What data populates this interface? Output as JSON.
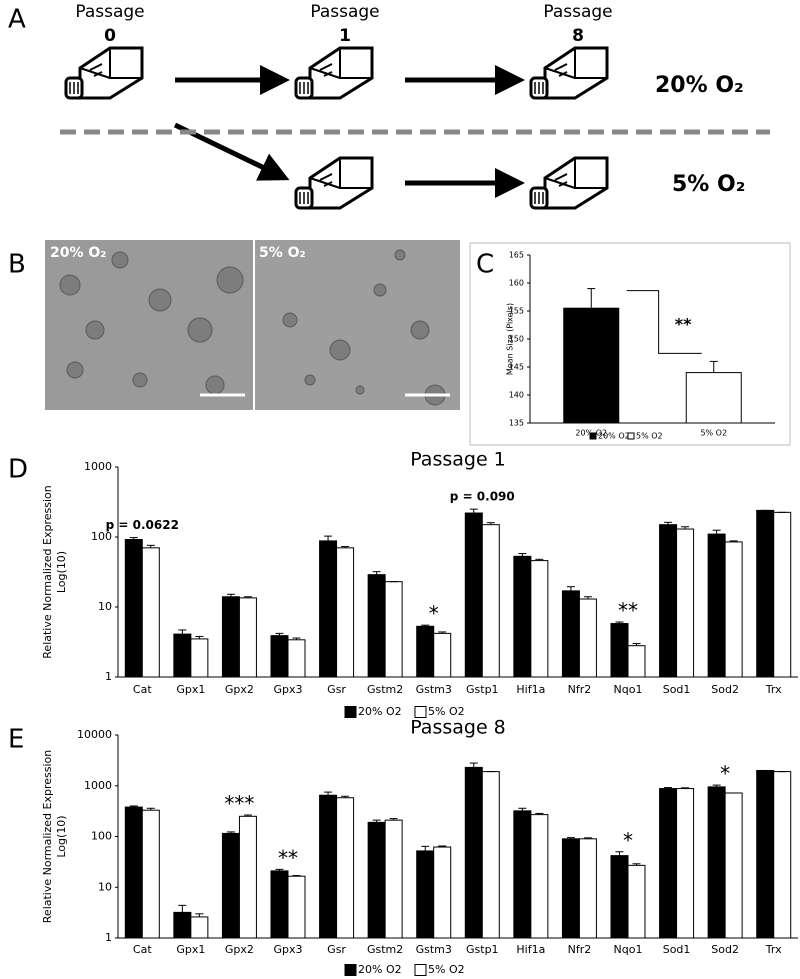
{
  "panel_labels": [
    "A",
    "B",
    "C",
    "D",
    "E"
  ],
  "panel_a": {
    "passage_word": "Passage",
    "passages": [
      "0",
      "1",
      "8"
    ],
    "conditions": [
      "20% O₂",
      "5% O₂"
    ]
  },
  "panel_b": {
    "images": [
      "20% O₂",
      "5% O₂"
    ]
  },
  "chart_data": [
    {
      "type": "bar",
      "y_label": [
        "Mean Size (Pixels)"
      ],
      "categories": [
        "20% O2",
        "5% O2"
      ],
      "values": [
        155.5,
        144
      ],
      "error": [
        3.5,
        2
      ],
      "colors": [
        "#000000",
        "#ffffff"
      ],
      "legend": [
        "20% O2",
        "5% O2"
      ],
      "ylim": [
        135,
        165
      ],
      "yticks": [
        135,
        140,
        145,
        150,
        155,
        160,
        165
      ],
      "annotations": [
        "**"
      ],
      "log_scale": false
    },
    {
      "type": "bar",
      "title": "Passage 1",
      "y_label": [
        "Relative Normalized Expression",
        "Log(10)"
      ],
      "categories": [
        "Cat",
        "Gpx1",
        "Gpx2",
        "Gpx3",
        "Gsr",
        "Gstm2",
        "Gstm3",
        "Gstp1",
        "Hif1a",
        "Nfr2",
        "Nqo1",
        "Sod1",
        "Sod2",
        "Trx"
      ],
      "series": [
        {
          "name": "20% O2",
          "color": "#000000",
          "values": [
            92,
            4.1,
            14,
            3.9,
            88,
            29,
            5.3,
            220,
            53,
            17,
            5.8,
            150,
            110,
            240
          ],
          "error": [
            6,
            0.6,
            1.2,
            0.3,
            15,
            3,
            0.2,
            30,
            5,
            2.5,
            0.3,
            12,
            15,
            0
          ]
        },
        {
          "name": "5% O2",
          "color": "#ffffff",
          "values": [
            70,
            3.5,
            13.5,
            3.4,
            70,
            23,
            4.2,
            150,
            46,
            13,
            2.8,
            130,
            85,
            225
          ],
          "error": [
            6,
            0.3,
            0.5,
            0.2,
            3,
            0,
            0.2,
            10,
            2,
            1,
            0.2,
            10,
            3,
            0
          ]
        }
      ],
      "ylim": [
        1,
        1000
      ],
      "yticks": [
        1,
        10,
        100,
        1000
      ],
      "log_scale": true,
      "annotations": [
        "p = 0.0622",
        "*",
        "p = 0.090",
        "**"
      ]
    },
    {
      "type": "bar",
      "title": "Passage 8",
      "y_label": [
        "Relative Normalized Expression",
        "Log(10)"
      ],
      "categories": [
        "Cat",
        "Gpx1",
        "Gpx2",
        "Gpx3",
        "Gsr",
        "Gstm2",
        "Gstm3",
        "Gstp1",
        "Hif1a",
        "Nfr2",
        "Nqo1",
        "Sod1",
        "Sod2",
        "Trx"
      ],
      "series": [
        {
          "name": "20% O2",
          "color": "#000000",
          "values": [
            380,
            3.2,
            115,
            21,
            650,
            190,
            52,
            2300,
            320,
            90,
            42,
            880,
            950,
            2000
          ],
          "error": [
            20,
            1.2,
            8,
            1.5,
            100,
            20,
            12,
            500,
            40,
            5,
            8,
            40,
            80,
            0
          ]
        },
        {
          "name": "5% O2",
          "color": "#ffffff",
          "values": [
            330,
            2.6,
            250,
            16.5,
            580,
            210,
            62,
            1900,
            270,
            90,
            27,
            880,
            720,
            1900
          ],
          "error": [
            30,
            0.4,
            15,
            0.5,
            40,
            15,
            3,
            0,
            15,
            4,
            2,
            30,
            0,
            0
          ]
        }
      ],
      "ylim": [
        1,
        10000
      ],
      "yticks": [
        1,
        10,
        100,
        1000,
        10000
      ],
      "log_scale": true,
      "annotations": [
        "***",
        "**",
        "*",
        "*"
      ]
    }
  ]
}
